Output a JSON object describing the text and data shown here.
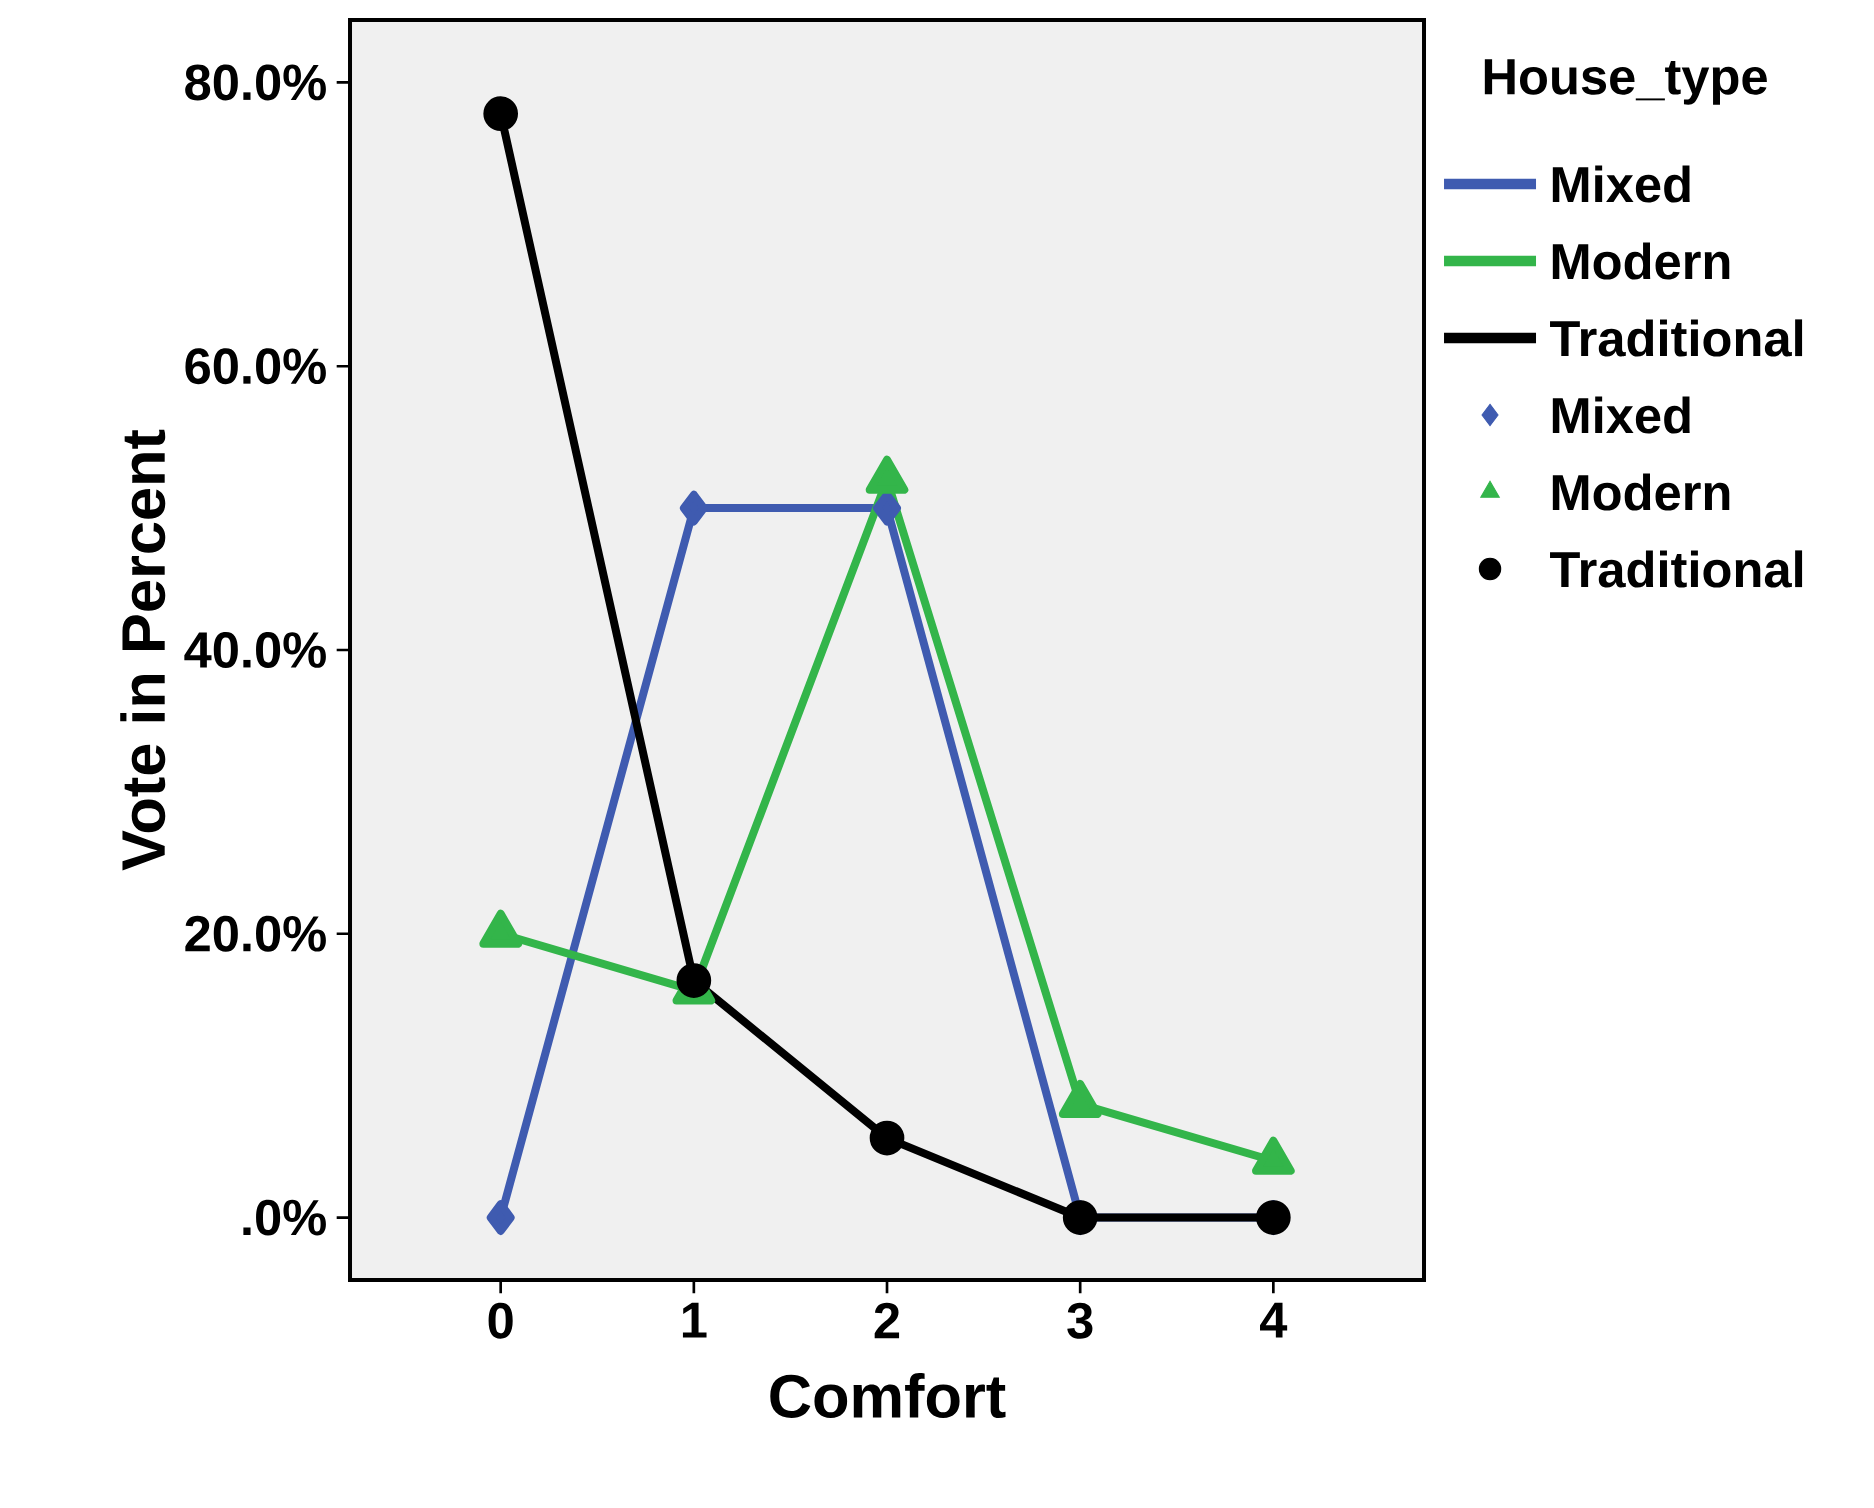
{
  "chart_data": {
    "type": "line",
    "xlabel": "Comfort",
    "ylabel": "Vote in Percent",
    "legend_title": "House_type",
    "legend": "right",
    "categories": [
      "0",
      "1",
      "2",
      "3",
      "4"
    ],
    "ylim": [
      -4.4,
      84.4
    ],
    "yticks": [
      {
        "value": 0,
        "label": ".0%"
      },
      {
        "value": 20,
        "label": "20.0%"
      },
      {
        "value": 40,
        "label": "40.0%"
      },
      {
        "value": 60,
        "label": "60.0%"
      },
      {
        "value": 80,
        "label": "80.0%"
      }
    ],
    "series": [
      {
        "name": "Mixed",
        "color": "#3f5bb0",
        "marker": "diamond",
        "values": [
          0,
          50,
          50,
          0,
          0
        ]
      },
      {
        "name": "Modern",
        "color": "#33b54a",
        "marker": "triangle",
        "values": [
          20,
          16,
          52,
          8,
          4
        ]
      },
      {
        "name": "Traditional",
        "color": "#000000",
        "marker": "circle",
        "values": [
          77.8,
          16.7,
          5.6,
          0,
          0
        ]
      }
    ]
  }
}
